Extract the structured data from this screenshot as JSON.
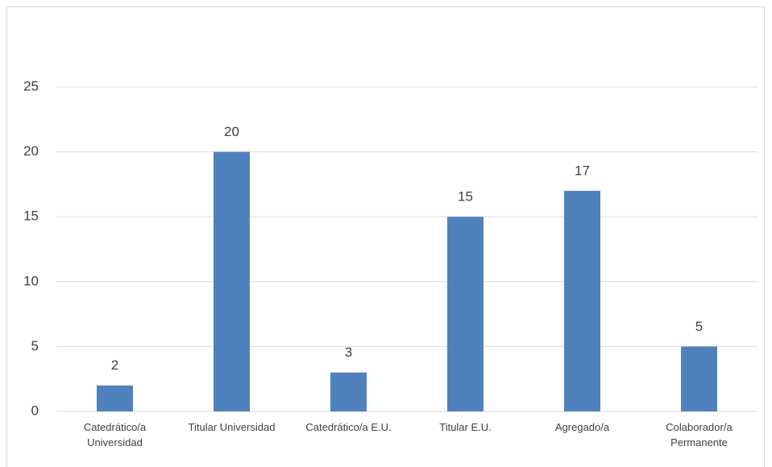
{
  "chart_data": {
    "type": "bar",
    "categories": [
      "Catedrático/a Universidad",
      "Titular Universidad",
      "Catedrático/a E.U.",
      "Titular E.U.",
      "Agregado/a",
      "Colaborador/a Permanente"
    ],
    "values": [
      2,
      20,
      3,
      15,
      17,
      5
    ],
    "color": "#4f81bd",
    "ylim": [
      0,
      25
    ],
    "yticks": [
      0,
      5,
      10,
      15,
      20,
      25
    ],
    "grid": true,
    "data_labels": true
  }
}
